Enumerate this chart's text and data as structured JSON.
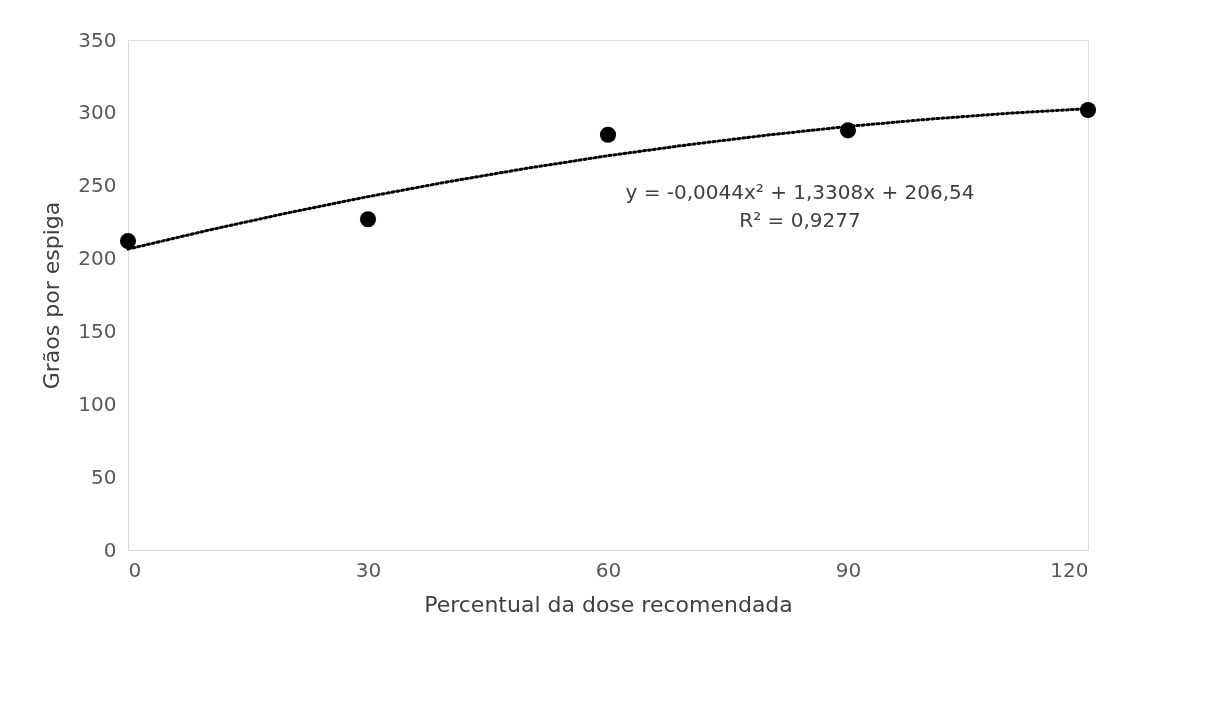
{
  "chart_data": {
    "type": "scatter",
    "xlabel": "Percentual da dose recomendada",
    "ylabel": "Grãos por espiga",
    "series": [
      {
        "type": "scatter",
        "color": "#000000",
        "marker": "circle",
        "x": [
          0,
          30,
          60,
          90,
          120
        ],
        "values": [
          212,
          227,
          285,
          288,
          302
        ]
      },
      {
        "type": "line",
        "color": "#000000",
        "line_style": "dotted",
        "marker": "none",
        "x": [
          0,
          10,
          20,
          30,
          40,
          50,
          60,
          70,
          80,
          90,
          100,
          110,
          120
        ],
        "values": [
          206.5,
          219.4,
          231.4,
          242.5,
          252.7,
          262.1,
          270.6,
          278.1,
          284.8,
          290.7,
          295.6,
          299.7,
          302.9
        ]
      }
    ],
    "xlim": [
      0,
      120
    ],
    "xticks": [
      0,
      30,
      60,
      90,
      120
    ],
    "ylim": [
      0,
      350
    ],
    "yticks": [
      0,
      50,
      100,
      150,
      200,
      250,
      300,
      350
    ],
    "grid": false,
    "annotations": [
      "y = -0,0044x² + 1,3308x + 206,54",
      "R² = 0,9277"
    ]
  }
}
